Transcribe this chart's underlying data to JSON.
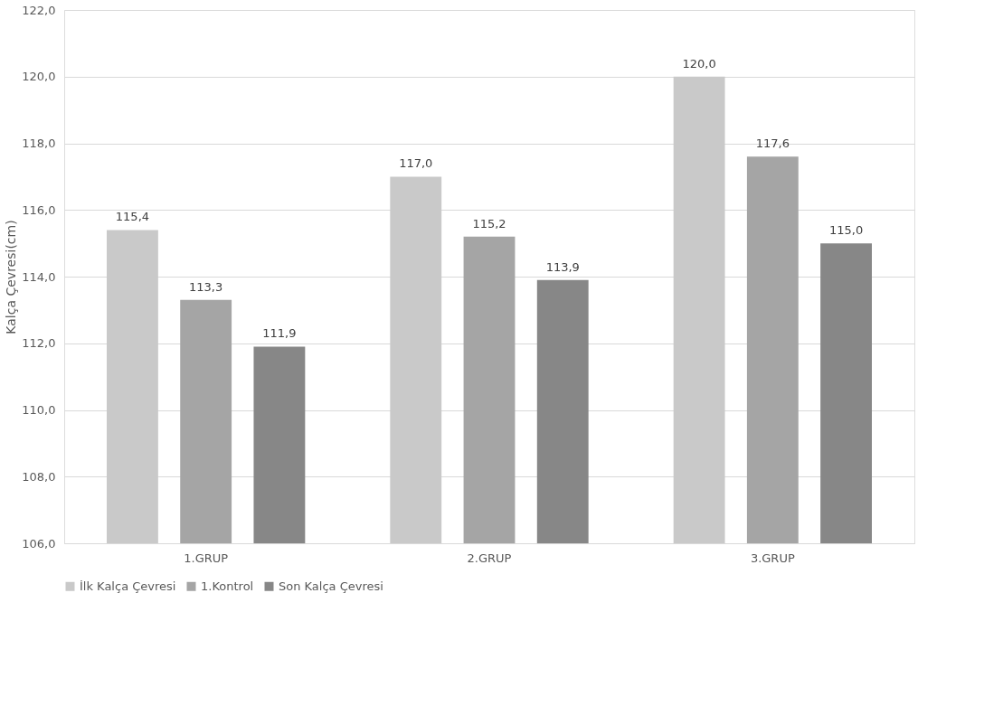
{
  "chart_data": {
    "type": "bar",
    "ylabel": "Kalça Çevresi(cm)",
    "categories": [
      "1.GRUP",
      "2.GRUP",
      "3.GRUP"
    ],
    "series": [
      {
        "name": "İlk Kalça Çevresi",
        "color": "#c9c9c9",
        "values": [
          115.4,
          117.0,
          120.0
        ],
        "value_labels": [
          "115,4",
          "117,0",
          "120,0"
        ]
      },
      {
        "name": "1.Kontrol",
        "color": "#a5a5a5",
        "values": [
          113.3,
          115.2,
          117.6
        ],
        "value_labels": [
          "113,3",
          "115,2",
          "117,6"
        ]
      },
      {
        "name": "Son Kalça Çevresi",
        "color": "#878787",
        "values": [
          111.9,
          113.9,
          115.0
        ],
        "value_labels": [
          "111,9",
          "113,9",
          "115,0"
        ]
      }
    ],
    "ylim": [
      106,
      122
    ],
    "yticks": [
      {
        "value": 106,
        "label": "106,0"
      },
      {
        "value": 108,
        "label": "108,0"
      },
      {
        "value": 110,
        "label": "110,0"
      },
      {
        "value": 112,
        "label": "112,0"
      },
      {
        "value": 114,
        "label": "114,0"
      },
      {
        "value": 116,
        "label": "116,0"
      },
      {
        "value": 118,
        "label": "118,0"
      },
      {
        "value": 120,
        "label": "120,0"
      },
      {
        "value": 122,
        "label": "122,0"
      }
    ],
    "grid": "y",
    "legend": "bottom"
  }
}
